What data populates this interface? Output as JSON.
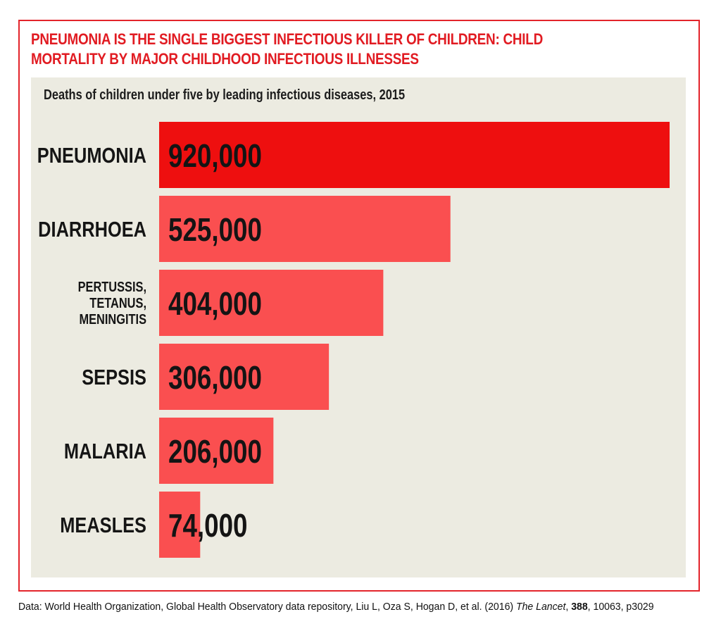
{
  "title": "PNEUMONIA IS THE SINGLE BIGGEST INFECTIOUS KILLER OF CHILDREN: CHILD MORTALITY BY MAJOR CHILDHOOD INFECTIOUS ILLNESSES",
  "colors": {
    "accent": "#e3242b",
    "highlight_bar": "#ee0f0f",
    "bar": "#fa4f50",
    "panel": "#ecebe1"
  },
  "source": {
    "prefix": "Data: World Health Organization, Global Health Observatory data repository, Liu L, Oza S, Hogan D, et al. (2016) ",
    "journal": "The Lancet",
    "sep1": ", ",
    "volume": "388",
    "rest": ", 10063, p3029"
  },
  "chart_data": {
    "type": "bar",
    "orientation": "horizontal",
    "subtitle": "Deaths of children under five by leading infectious diseases, 2015",
    "categories": [
      "PNEUMONIA",
      "DIARRHOEA",
      "PERTUSSIS, TETANUS, MENINGITIS",
      "SEPSIS",
      "MALARIA",
      "MEASLES"
    ],
    "category_lines": [
      [
        "PNEUMONIA"
      ],
      [
        "DIARRHOEA"
      ],
      [
        "PERTUSSIS,",
        "TETANUS,",
        "MENINGITIS"
      ],
      [
        "SEPSIS"
      ],
      [
        "MALARIA"
      ],
      [
        "MEASLES"
      ]
    ],
    "values": [
      920000,
      525000,
      404000,
      306000,
      206000,
      74000
    ],
    "value_labels": [
      "920,000",
      "525,000",
      "404,000",
      "306,000",
      "206,000",
      "74,000"
    ],
    "xlim": [
      0,
      920000
    ],
    "highlight_index": 0,
    "grid": false,
    "legend": "none"
  }
}
